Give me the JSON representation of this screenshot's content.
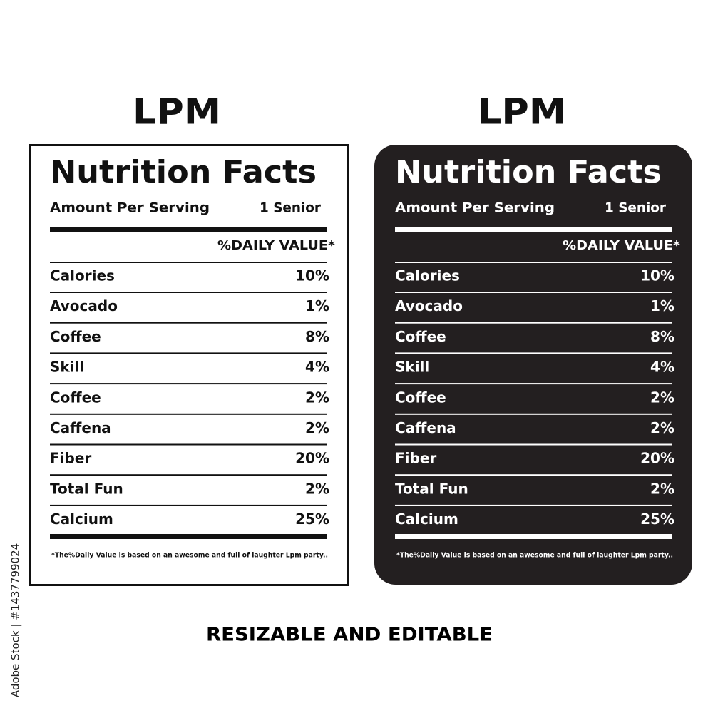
{
  "labels": [
    {
      "theme": "light",
      "heading": "LPM",
      "title": "Nutrition Facts",
      "serving_label": "Amount Per Serving",
      "serving_size": "1 Senior",
      "daily_value_header": "%DAILY VALUE*",
      "rows": [
        [
          "Calories",
          "10%"
        ],
        [
          "Avocado",
          "1%"
        ],
        [
          "Coffee",
          "8%"
        ],
        [
          "Skill",
          "4%"
        ],
        [
          "Coffee",
          "2%"
        ],
        [
          "Caffena",
          "2%"
        ],
        [
          "Fiber",
          "20%"
        ],
        [
          "Total Fun",
          "2%"
        ],
        [
          "Calcium",
          "25%"
        ]
      ],
      "footnote": "*The%Daily Value is based on an awesome and full of laughter Lpm party.."
    },
    {
      "theme": "dark",
      "heading": "LPM",
      "title": "Nutrition Facts",
      "serving_label": "Amount Per Serving",
      "serving_size": "1 Senior",
      "daily_value_header": "%DAILY VALUE*",
      "rows": [
        [
          "Calories",
          "10%"
        ],
        [
          "Avocado",
          "1%"
        ],
        [
          "Coffee",
          "8%"
        ],
        [
          "Skill",
          "4%"
        ],
        [
          "Coffee",
          "2%"
        ],
        [
          "Caffena",
          "2%"
        ],
        [
          "Fiber",
          "20%"
        ],
        [
          "Total Fun",
          "2%"
        ],
        [
          "Calcium",
          "25%"
        ]
      ],
      "footnote": "*The%Daily Value is based on an awesome and full of laughter Lpm party.."
    }
  ],
  "caption": "RESIZABLE AND EDITABLE",
  "side_text": "Adobe Stock | #1437799024"
}
